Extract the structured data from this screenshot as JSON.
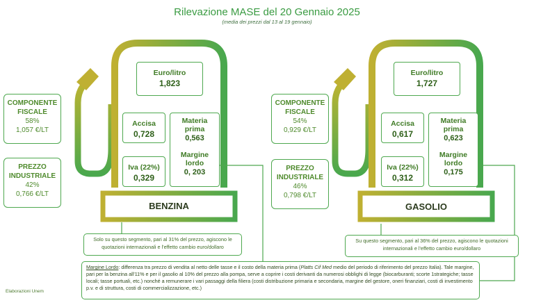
{
  "header": {
    "title": "Rilevazione MASE del 20 Gennaio 2025",
    "subtitle": "(media dei prezzi dal 13 al 19 gennaio)"
  },
  "colors": {
    "accent": "#4ea84f",
    "olive": "#b8ae34",
    "text": "#3f7b25"
  },
  "benzina": {
    "name": "BENZINA",
    "euro_litro_label": "Euro/litro",
    "euro_litro_value": "1,823",
    "accisa_label": "Accisa",
    "accisa_value": "0,728",
    "iva_label": "Iva (22%)",
    "iva_value": "0,329",
    "materia_label": "Materia prima",
    "materia_value": "0,563",
    "margine_label": "Margine lordo",
    "margine_value": "0, 203",
    "componente_fiscale_title": "COMPONENTE FISCALE",
    "componente_fiscale_pct": "58%",
    "componente_fiscale_value": "1,057 €/LT",
    "prezzo_industriale_title": "PREZZO INDUSTRIALE",
    "prezzo_industriale_pct": "42%",
    "prezzo_industriale_value": "0,766 €/LT",
    "note": "Solo su questo segmento, pari al 31% del prezzo, agiscono le quotazioni internazionali e l'effetto cambio euro/dollaro"
  },
  "gasolio": {
    "name": "GASOLIO",
    "euro_litro_label": "Euro/litro",
    "euro_litro_value": "1,727",
    "accisa_label": "Accisa",
    "accisa_value": "0,617",
    "iva_label": "Iva (22%)",
    "iva_value": "0,312",
    "materia_label": "Materia prima",
    "materia_value": "0,623",
    "margine_label": "Margine lordo",
    "margine_value": "0,175",
    "componente_fiscale_title": "COMPONENTE FISCALE",
    "componente_fiscale_pct": "54%",
    "componente_fiscale_value": "0,929 €/LT",
    "prezzo_industriale_title": "PREZZO INDUSTRIALE",
    "prezzo_industriale_pct": "46%",
    "prezzo_industriale_value": "0,798 €/LT",
    "note": "Su questo segmento, pari al 36% del prezzo, agiscono le quotazioni internazionali e l'effetto cambio euro/dollaro"
  },
  "legal": {
    "term": "Margine Lordo",
    "line1": ": differenza tra prezzo di vendita al netto delle tasse e il costo della materia prima (",
    "platts": "Platts Cif Med",
    "line1b": " medio del periodo di riferimento del prezzo Italia).",
    "body": "Tale margine, pari per la benzina all'11% e per il gasolio al 10% del prezzo alla pompa, serve a coprire i costi derivanti da numerosi obblighi di legge (biocarburanti; scorte 1strategiche; tasse locali; tasse portuali, etc.) nonché a remunerare i vari passaggi della filiera (costi distribuzione primaria e secondaria, margine del gestore, oneri finanziari, costi di investimento p.v. e di struttura, costi di commercializzazione, etc.)"
  },
  "credit": "Elaborazioni Unem"
}
